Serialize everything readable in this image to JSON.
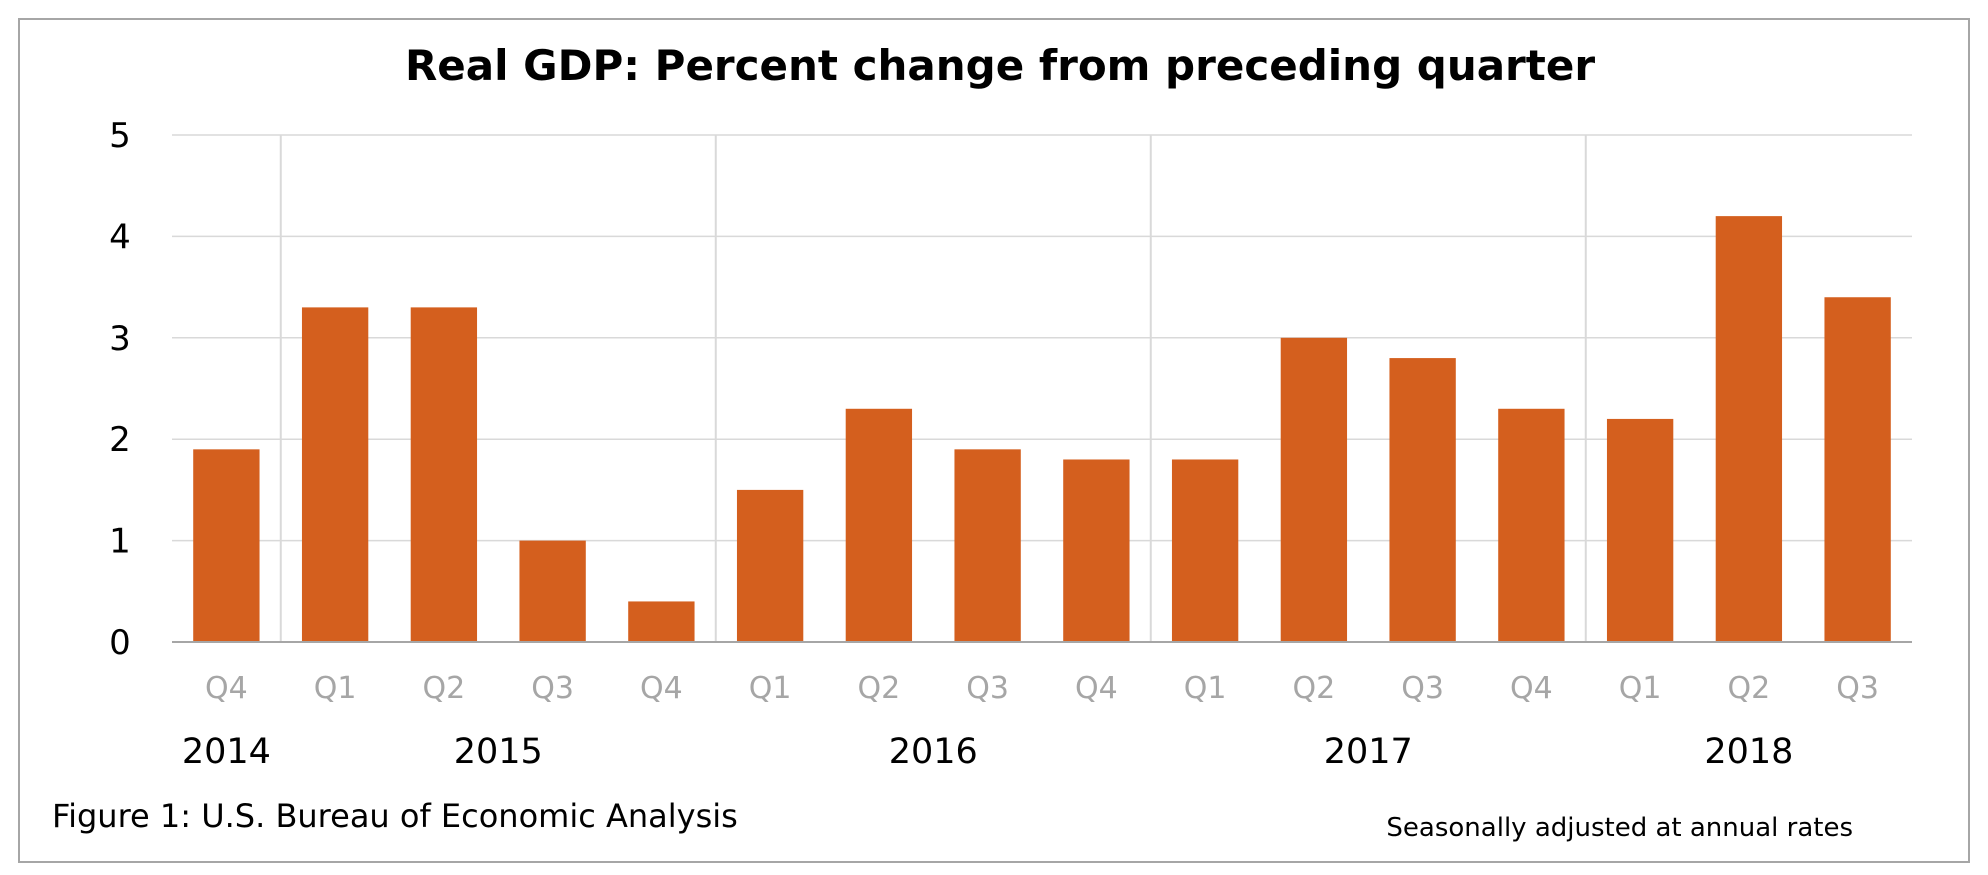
{
  "chart_data": {
    "type": "bar",
    "title": "Real GDP:  Percent change from preceding quarter",
    "xlabel": "",
    "ylabel": "",
    "categories": [
      "Q4",
      "Q1",
      "Q2",
      "Q3",
      "Q4",
      "Q1",
      "Q2",
      "Q3",
      "Q4",
      "Q1",
      "Q2",
      "Q3",
      "Q4",
      "Q1",
      "Q2",
      "Q3"
    ],
    "values": [
      1.9,
      3.3,
      3.3,
      1.0,
      0.4,
      1.5,
      2.3,
      1.9,
      1.8,
      1.8,
      3.0,
      2.8,
      2.3,
      2.2,
      4.2,
      3.4
    ],
    "year_groups": [
      {
        "label": "2014",
        "count": 1
      },
      {
        "label": "2015",
        "count": 4
      },
      {
        "label": "2016",
        "count": 4
      },
      {
        "label": "2017",
        "count": 4
      },
      {
        "label": "2018",
        "count": 3
      }
    ],
    "ylim": [
      0,
      5
    ],
    "yticks": [
      0,
      1,
      2,
      3,
      4,
      5
    ],
    "grid": true,
    "legend": "none",
    "bar_color": "#d45f1e",
    "gridline_color": "#d9d9d9",
    "axis_color": "#a6a6a6",
    "tick_label_color": "#a6a6a6"
  },
  "caption": "Figure 1: U.S. Bureau of Economic Analysis",
  "note": "Seasonally adjusted at annual rates"
}
